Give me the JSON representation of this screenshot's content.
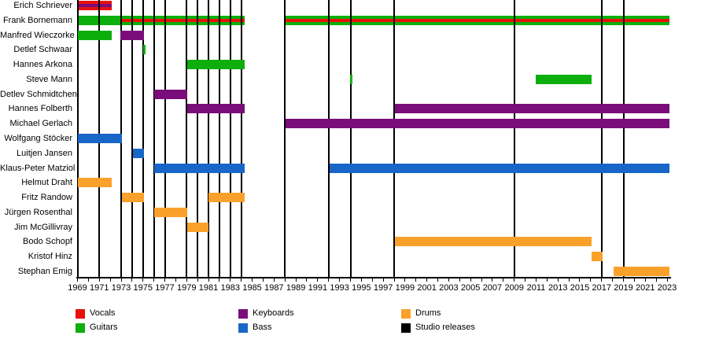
{
  "chart_data": {
    "type": "timeline",
    "x_axis": {
      "min": 1969,
      "max": 2023,
      "label_step": 2,
      "tick_step": 1,
      "unit": "year"
    },
    "colors": {
      "vocals": "#E8100C",
      "guitars": "#0CAF0C",
      "keyboards": "#7A0D7A",
      "bass": "#1766C8",
      "drums": "#F9A12B",
      "studio_releases": "#000000"
    },
    "studio_release_years": [
      1971,
      1973,
      1974,
      1975,
      1976,
      1977,
      1979,
      1980,
      1981,
      1982,
      1983,
      1984,
      1988,
      1992,
      1994,
      1998,
      2009,
      2017,
      2019
    ],
    "members": [
      {
        "name": "Erich Schriever",
        "bars": [
          {
            "instrument": "vocals",
            "start": 1969,
            "end": 1972.15
          },
          {
            "instrument": "keyboards",
            "start": 1969,
            "end": 1972.15,
            "thin": true
          }
        ]
      },
      {
        "name": "Frank Bornemann",
        "bars": [
          {
            "instrument": "guitars",
            "start": 1969,
            "end": 1984.3
          },
          {
            "instrument": "vocals",
            "start": 1973.05,
            "end": 1984.3,
            "thin": true
          },
          {
            "instrument": "guitars",
            "start": 1988.05,
            "end": 2023.2
          },
          {
            "instrument": "vocals",
            "start": 1988.05,
            "end": 2023.2,
            "thin": true
          }
        ]
      },
      {
        "name": "Manfred Wieczorke",
        "bars": [
          {
            "instrument": "guitars",
            "start": 1969,
            "end": 1972.15
          },
          {
            "instrument": "keyboards",
            "start": 1972.95,
            "end": 1975.1
          },
          {
            "instrument": "guitars",
            "start": 1973.0,
            "end": 1974.15,
            "thin": true
          }
        ]
      },
      {
        "name": "Detlef Schwaar",
        "bars": [
          {
            "instrument": "guitars",
            "start": 1975.0,
            "end": 1975.25
          }
        ]
      },
      {
        "name": "Hannes Arkona",
        "bars": [
          {
            "instrument": "guitars",
            "start": 1979.05,
            "end": 1984.3
          },
          {
            "instrument": "keyboards",
            "start": 1981.0,
            "end": 1984.2,
            "thin": true
          }
        ]
      },
      {
        "name": "Steve Mann",
        "bars": [
          {
            "instrument": "guitars",
            "start": 1993.95,
            "end": 1994.2
          },
          {
            "instrument": "guitars",
            "start": 2011.0,
            "end": 2016.1
          }
        ]
      },
      {
        "name": "Detlev Schmidtchen",
        "bars": [
          {
            "instrument": "keyboards",
            "start": 1976.05,
            "end": 1979.05
          }
        ]
      },
      {
        "name": "Hannes Folberth",
        "bars": [
          {
            "instrument": "keyboards",
            "start": 1979.05,
            "end": 1984.3
          },
          {
            "instrument": "keyboards",
            "start": 1998.05,
            "end": 2023.2
          }
        ]
      },
      {
        "name": "Michael Gerlach",
        "bars": [
          {
            "instrument": "keyboards",
            "start": 1988.05,
            "end": 2023.2
          }
        ]
      },
      {
        "name": "Wolfgang Stöcker",
        "bars": [
          {
            "instrument": "bass",
            "start": 1969,
            "end": 1973.1
          }
        ]
      },
      {
        "name": "Luitjen Jansen",
        "bars": [
          {
            "instrument": "bass",
            "start": 1974.05,
            "end": 1975.1
          }
        ]
      },
      {
        "name": "Klaus-Peter Matziol",
        "bars": [
          {
            "instrument": "bass",
            "start": 1976.05,
            "end": 1984.3
          },
          {
            "instrument": "bass",
            "start": 1992.1,
            "end": 2023.2
          }
        ]
      },
      {
        "name": "Helmut Draht",
        "bars": [
          {
            "instrument": "drums",
            "start": 1969,
            "end": 1972.1
          }
        ]
      },
      {
        "name": "Fritz Randow",
        "bars": [
          {
            "instrument": "drums",
            "start": 1973.05,
            "end": 1975.1
          },
          {
            "instrument": "drums",
            "start": 1981.0,
            "end": 1984.3
          }
        ]
      },
      {
        "name": "Jürgen Rosenthal",
        "bars": [
          {
            "instrument": "drums",
            "start": 1976.05,
            "end": 1979.05
          }
        ]
      },
      {
        "name": "Jim McGillivray",
        "bars": [
          {
            "instrument": "drums",
            "start": 1979.05,
            "end": 1981.0
          }
        ]
      },
      {
        "name": "Bodo Schopf",
        "bars": [
          {
            "instrument": "drums",
            "start": 1998.05,
            "end": 2016.05
          }
        ]
      },
      {
        "name": "Kristof Hinz",
        "bars": [
          {
            "instrument": "drums",
            "start": 2016.05,
            "end": 2017.1
          }
        ]
      },
      {
        "name": "Stephan Emig",
        "bars": [
          {
            "instrument": "drums",
            "start": 2018.1,
            "end": 2023.2
          }
        ]
      }
    ],
    "legend": [
      {
        "label": "Vocals",
        "key": "vocals"
      },
      {
        "label": "Guitars",
        "key": "guitars"
      },
      {
        "label": "Keyboards",
        "key": "keyboards"
      },
      {
        "label": "Bass",
        "key": "bass"
      },
      {
        "label": "Drums",
        "key": "drums"
      },
      {
        "label": "Studio releases",
        "key": "studio_releases"
      }
    ]
  }
}
